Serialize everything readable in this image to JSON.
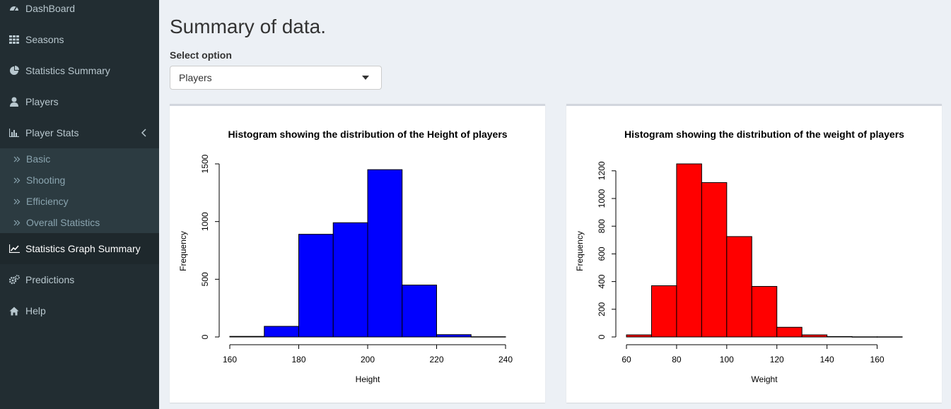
{
  "sidebar": {
    "items": [
      {
        "label": "DashBoard",
        "icon": "dashboard-icon"
      },
      {
        "label": "Seasons",
        "icon": "grid-icon"
      },
      {
        "label": "Statistics Summary",
        "icon": "pie-chart-icon"
      },
      {
        "label": "Players",
        "icon": "user-icon"
      },
      {
        "label": "Player Stats",
        "icon": "bar-chart-icon"
      },
      {
        "label": "Statistics Graph Summary",
        "icon": "line-chart-icon"
      },
      {
        "label": "Predictions",
        "icon": "gears-icon"
      },
      {
        "label": "Help",
        "icon": "home-icon"
      }
    ],
    "submenu": [
      {
        "label": "Basic"
      },
      {
        "label": "Shooting"
      },
      {
        "label": "Efficiency"
      },
      {
        "label": "Overall Statistics"
      }
    ],
    "active": "Statistics Graph Summary",
    "colors": {
      "bg": "#222d32",
      "active_bg": "#1e282c",
      "submenu_bg": "#2c3b41"
    }
  },
  "main": {
    "title": "Summary of data.",
    "select_label": "Select option",
    "select_value": "Players"
  },
  "chart_data": [
    {
      "type": "bar",
      "title": "Histogram showing the distribution of the Height of players",
      "xlabel": "Height",
      "ylabel": "Frequency",
      "bin_edges": [
        160,
        170,
        180,
        190,
        200,
        210,
        220,
        230,
        240
      ],
      "values": [
        5,
        92,
        890,
        990,
        1450,
        450,
        20,
        2
      ],
      "xticks": [
        160,
        180,
        200,
        220,
        240
      ],
      "yticks": [
        0,
        500,
        1000,
        1500
      ],
      "xlim": [
        160,
        240
      ],
      "ylim": [
        0,
        1500
      ],
      "color": "#0000ff"
    },
    {
      "type": "bar",
      "title": "Histogram showing the distribution of the weight of players",
      "xlabel": "Weight",
      "ylabel": "Frequency",
      "bin_edges": [
        60,
        70,
        80,
        90,
        100,
        110,
        120,
        130,
        140,
        150,
        160,
        170
      ],
      "values": [
        15,
        370,
        1250,
        1115,
        725,
        365,
        70,
        15,
        3,
        1,
        1
      ],
      "xticks": [
        60,
        80,
        100,
        120,
        140,
        160
      ],
      "yticks": [
        0,
        200,
        400,
        600,
        800,
        1000,
        1200
      ],
      "xlim": [
        60,
        170
      ],
      "ylim": [
        0,
        1250
      ],
      "color": "#ff0000"
    }
  ]
}
